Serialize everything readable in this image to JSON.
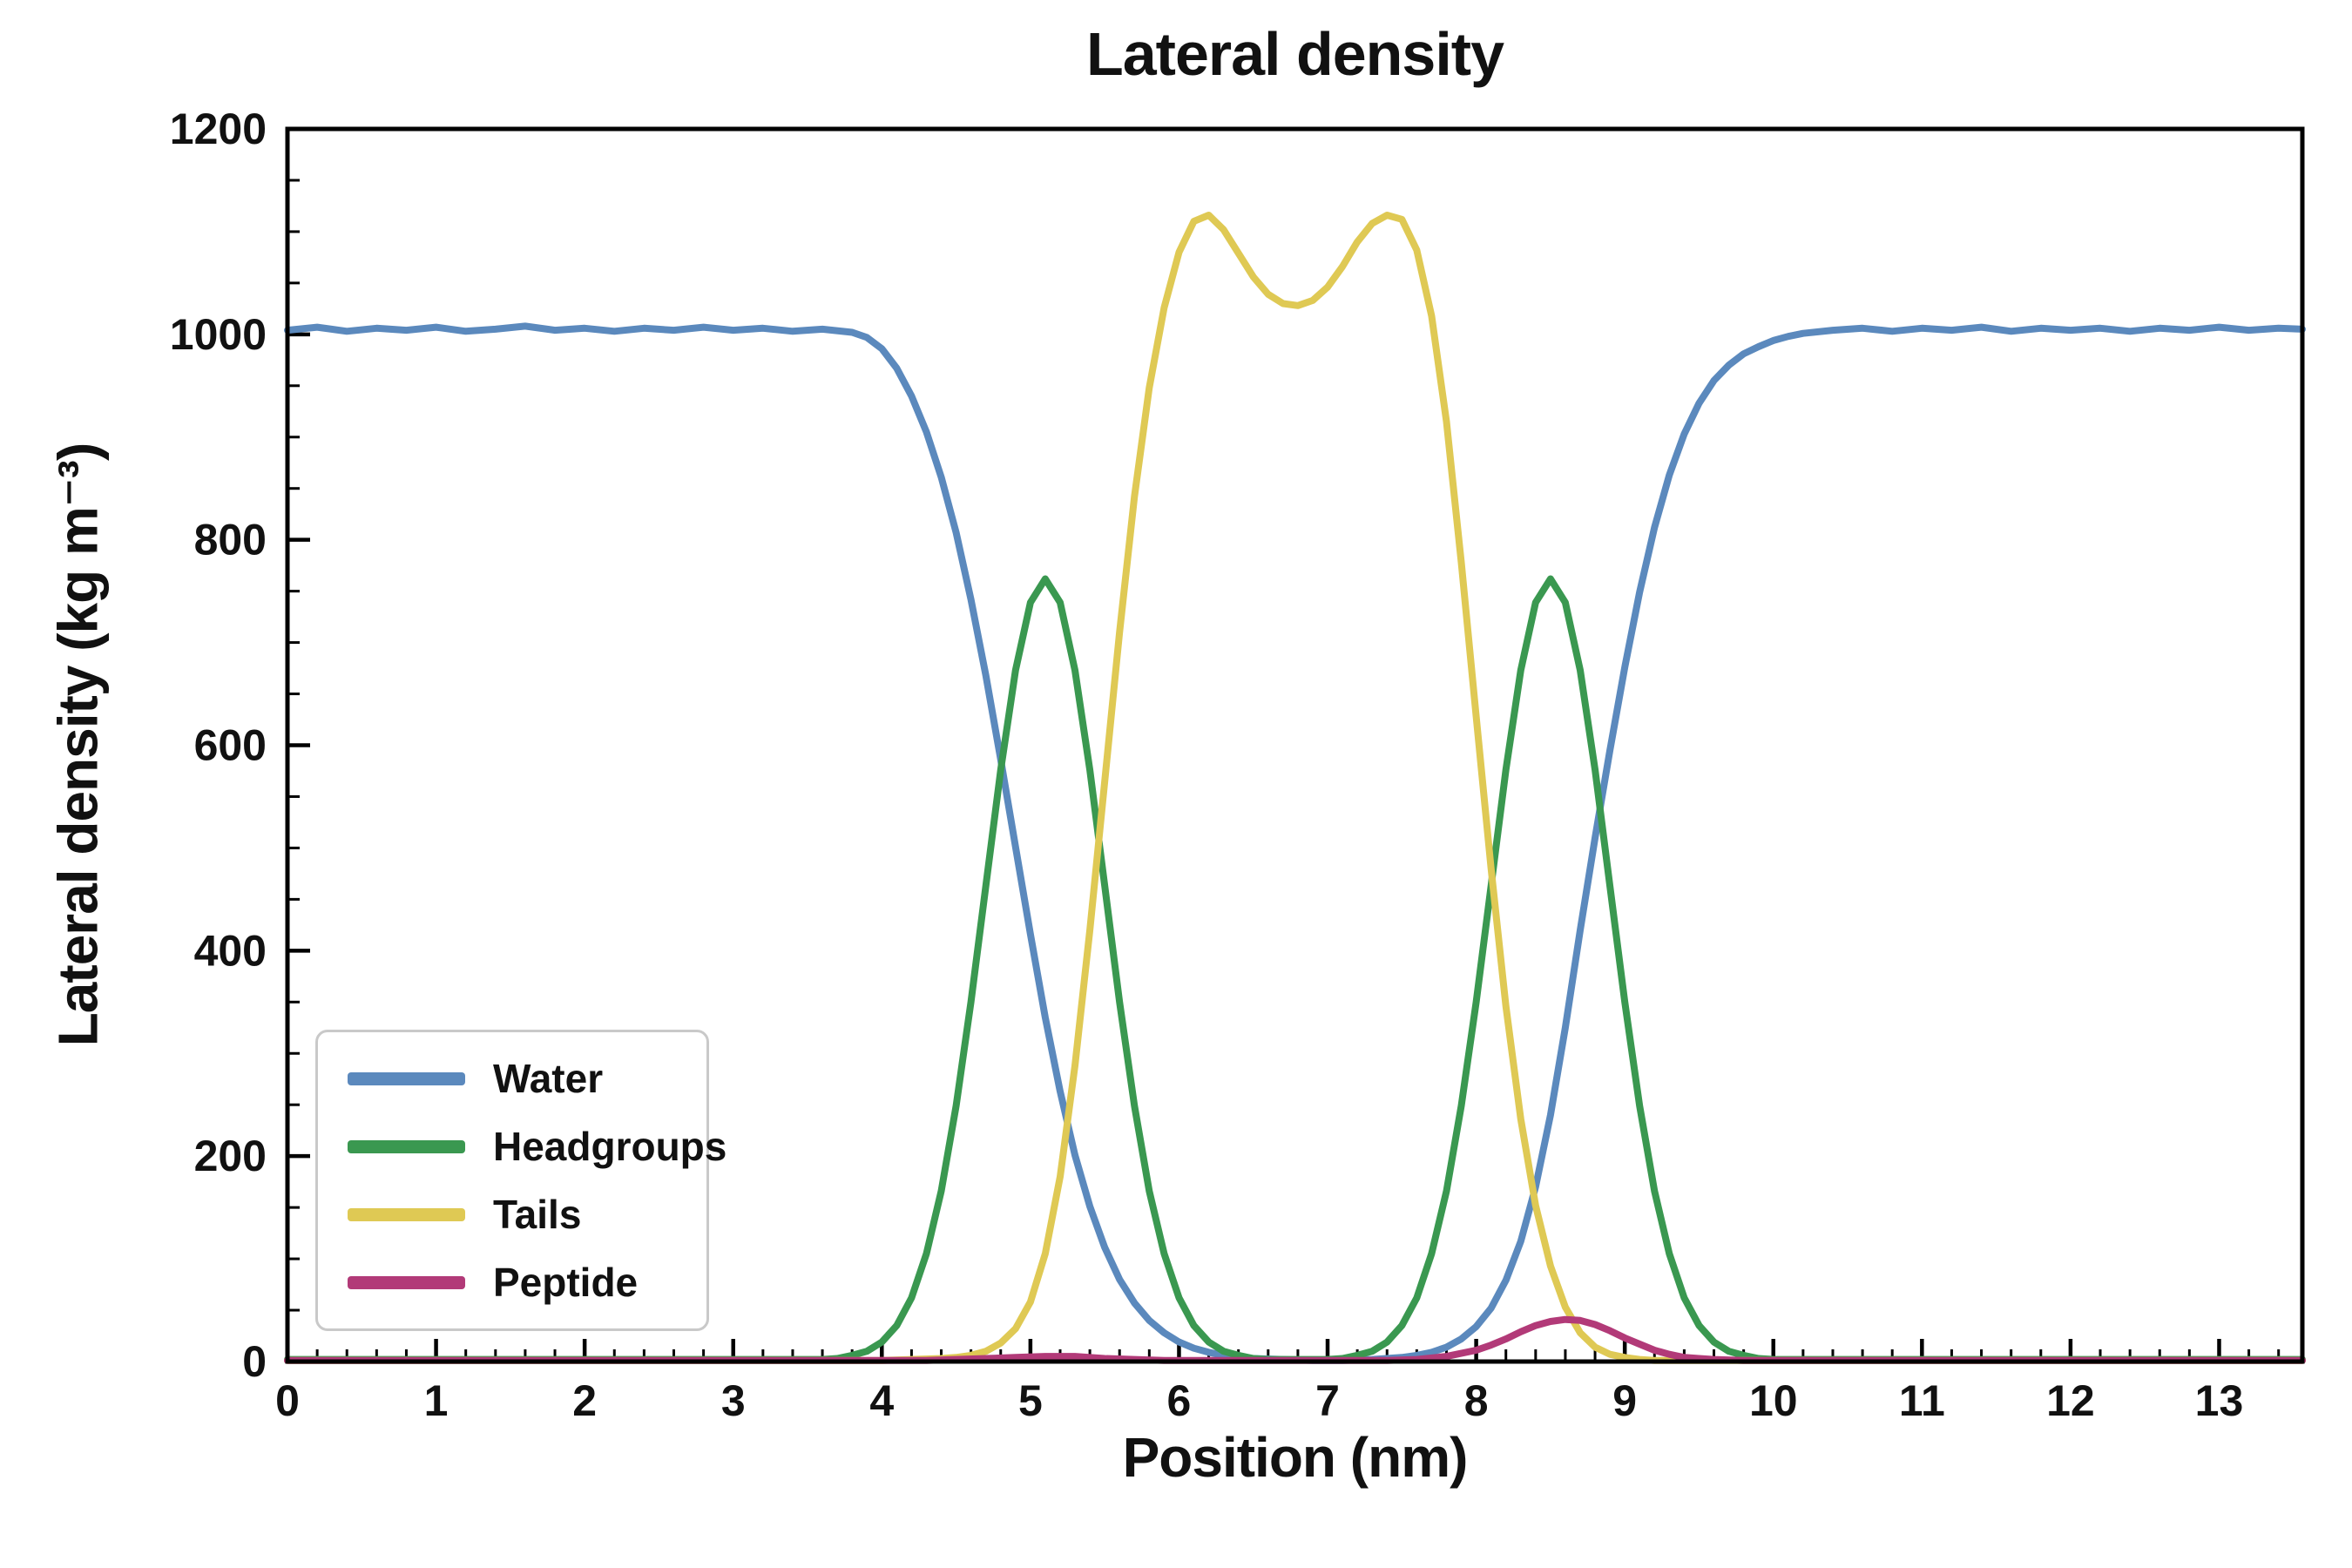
{
  "chart_data": {
    "type": "line",
    "title": "Lateral density",
    "xlabel": "Position (nm)",
    "ylabel": "Lateral density (kg m⁻³)",
    "xlim": [
      0,
      13.56
    ],
    "ylim": [
      0,
      1200
    ],
    "x_major_ticks": [
      0,
      1,
      2,
      3,
      4,
      5,
      6,
      7,
      8,
      9,
      10,
      11,
      12,
      13
    ],
    "x_minor_step": 0.2,
    "y_major_ticks": [
      0,
      200,
      400,
      600,
      800,
      1000,
      1200
    ],
    "y_minor_step": 50,
    "grid": false,
    "legend_position": "lower left",
    "frame_color": "#000000",
    "background_color": "#ffffff",
    "series": [
      {
        "name": "Water",
        "color": "#5b89bd",
        "points": [
          [
            0,
            1004
          ],
          [
            0.2,
            1007
          ],
          [
            0.4,
            1003
          ],
          [
            0.6,
            1006
          ],
          [
            0.8,
            1004
          ],
          [
            1.0,
            1007
          ],
          [
            1.2,
            1003
          ],
          [
            1.4,
            1005
          ],
          [
            1.6,
            1008
          ],
          [
            1.8,
            1004
          ],
          [
            2.0,
            1006
          ],
          [
            2.2,
            1003
          ],
          [
            2.4,
            1006
          ],
          [
            2.6,
            1004
          ],
          [
            2.8,
            1007
          ],
          [
            3.0,
            1004
          ],
          [
            3.2,
            1006
          ],
          [
            3.4,
            1003
          ],
          [
            3.6,
            1005
          ],
          [
            3.8,
            1002
          ],
          [
            3.9,
            997
          ],
          [
            4.0,
            986
          ],
          [
            4.1,
            967
          ],
          [
            4.2,
            940
          ],
          [
            4.3,
            905
          ],
          [
            4.4,
            861
          ],
          [
            4.5,
            807
          ],
          [
            4.6,
            742
          ],
          [
            4.7,
            668
          ],
          [
            4.8,
            586
          ],
          [
            4.9,
            501
          ],
          [
            5.0,
            416
          ],
          [
            5.1,
            335
          ],
          [
            5.2,
            263
          ],
          [
            5.3,
            201
          ],
          [
            5.4,
            151
          ],
          [
            5.5,
            111
          ],
          [
            5.6,
            80
          ],
          [
            5.7,
            57
          ],
          [
            5.8,
            40
          ],
          [
            5.9,
            28
          ],
          [
            6.0,
            19
          ],
          [
            6.1,
            13
          ],
          [
            6.2,
            9
          ],
          [
            6.3,
            6
          ],
          [
            6.4,
            4
          ],
          [
            6.5,
            3
          ],
          [
            6.7,
            2
          ],
          [
            6.9,
            1
          ],
          [
            7.1,
            1
          ],
          [
            7.3,
            2
          ],
          [
            7.5,
            4
          ],
          [
            7.6,
            6
          ],
          [
            7.7,
            9
          ],
          [
            7.8,
            14
          ],
          [
            7.9,
            22
          ],
          [
            8.0,
            34
          ],
          [
            8.1,
            52
          ],
          [
            8.2,
            79
          ],
          [
            8.3,
            117
          ],
          [
            8.4,
            170
          ],
          [
            8.5,
            240
          ],
          [
            8.6,
            325
          ],
          [
            8.7,
            420
          ],
          [
            8.8,
            510
          ],
          [
            8.9,
            595
          ],
          [
            9.0,
            676
          ],
          [
            9.1,
            749
          ],
          [
            9.2,
            812
          ],
          [
            9.3,
            863
          ],
          [
            9.4,
            903
          ],
          [
            9.5,
            933
          ],
          [
            9.6,
            955
          ],
          [
            9.7,
            970
          ],
          [
            9.8,
            981
          ],
          [
            9.9,
            988
          ],
          [
            10.0,
            994
          ],
          [
            10.1,
            998
          ],
          [
            10.2,
            1001
          ],
          [
            10.4,
            1004
          ],
          [
            10.6,
            1006
          ],
          [
            10.8,
            1003
          ],
          [
            11.0,
            1006
          ],
          [
            11.2,
            1004
          ],
          [
            11.4,
            1007
          ],
          [
            11.6,
            1003
          ],
          [
            11.8,
            1006
          ],
          [
            12.0,
            1004
          ],
          [
            12.2,
            1006
          ],
          [
            12.4,
            1003
          ],
          [
            12.6,
            1006
          ],
          [
            12.8,
            1004
          ],
          [
            13.0,
            1007
          ],
          [
            13.2,
            1004
          ],
          [
            13.4,
            1006
          ],
          [
            13.56,
            1005
          ]
        ]
      },
      {
        "name": "Headgroups",
        "color": "#3a9850",
        "points": [
          [
            0,
            2
          ],
          [
            0.4,
            2
          ],
          [
            0.8,
            2
          ],
          [
            1.2,
            2
          ],
          [
            1.6,
            2
          ],
          [
            2.0,
            2
          ],
          [
            2.4,
            2
          ],
          [
            2.8,
            2
          ],
          [
            3.2,
            2
          ],
          [
            3.5,
            2
          ],
          [
            3.6,
            2
          ],
          [
            3.7,
            3
          ],
          [
            3.8,
            6
          ],
          [
            3.9,
            10
          ],
          [
            4.0,
            19
          ],
          [
            4.1,
            35
          ],
          [
            4.2,
            62
          ],
          [
            4.3,
            105
          ],
          [
            4.4,
            166
          ],
          [
            4.5,
            249
          ],
          [
            4.6,
            350
          ],
          [
            4.7,
            463
          ],
          [
            4.8,
            576
          ],
          [
            4.9,
            673
          ],
          [
            5.0,
            739
          ],
          [
            5.1,
            762
          ],
          [
            5.2,
            739
          ],
          [
            5.3,
            673
          ],
          [
            5.4,
            576
          ],
          [
            5.5,
            463
          ],
          [
            5.6,
            350
          ],
          [
            5.7,
            249
          ],
          [
            5.8,
            166
          ],
          [
            5.9,
            105
          ],
          [
            6.0,
            62
          ],
          [
            6.1,
            35
          ],
          [
            6.2,
            19
          ],
          [
            6.3,
            10
          ],
          [
            6.4,
            6
          ],
          [
            6.5,
            3
          ],
          [
            6.6,
            2
          ],
          [
            6.8,
            2
          ],
          [
            7.0,
            2
          ],
          [
            7.1,
            3
          ],
          [
            7.2,
            6
          ],
          [
            7.3,
            10
          ],
          [
            7.4,
            19
          ],
          [
            7.5,
            35
          ],
          [
            7.6,
            62
          ],
          [
            7.7,
            105
          ],
          [
            7.8,
            166
          ],
          [
            7.9,
            249
          ],
          [
            8.0,
            350
          ],
          [
            8.1,
            463
          ],
          [
            8.2,
            576
          ],
          [
            8.3,
            673
          ],
          [
            8.4,
            739
          ],
          [
            8.5,
            762
          ],
          [
            8.6,
            739
          ],
          [
            8.7,
            673
          ],
          [
            8.8,
            576
          ],
          [
            8.9,
            463
          ],
          [
            9.0,
            350
          ],
          [
            9.1,
            249
          ],
          [
            9.2,
            166
          ],
          [
            9.3,
            105
          ],
          [
            9.4,
            62
          ],
          [
            9.5,
            35
          ],
          [
            9.6,
            19
          ],
          [
            9.7,
            10
          ],
          [
            9.8,
            6
          ],
          [
            9.9,
            3
          ],
          [
            10.0,
            2
          ],
          [
            10.4,
            2
          ],
          [
            10.8,
            2
          ],
          [
            11.2,
            2
          ],
          [
            11.6,
            2
          ],
          [
            12.0,
            2
          ],
          [
            12.4,
            2
          ],
          [
            12.8,
            2
          ],
          [
            13.2,
            2
          ],
          [
            13.56,
            2
          ]
        ]
      },
      {
        "name": "Tails",
        "color": "#dfc954",
        "points": [
          [
            0,
            1
          ],
          [
            1,
            1
          ],
          [
            2,
            1
          ],
          [
            3,
            1
          ],
          [
            3.5,
            1
          ],
          [
            4.0,
            1
          ],
          [
            4.2,
            2
          ],
          [
            4.4,
            3
          ],
          [
            4.5,
            4
          ],
          [
            4.6,
            6
          ],
          [
            4.7,
            10
          ],
          [
            4.8,
            18
          ],
          [
            4.9,
            32
          ],
          [
            5.0,
            58
          ],
          [
            5.1,
            105
          ],
          [
            5.2,
            180
          ],
          [
            5.3,
            288
          ],
          [
            5.4,
            420
          ],
          [
            5.5,
            565
          ],
          [
            5.6,
            710
          ],
          [
            5.7,
            842
          ],
          [
            5.8,
            948
          ],
          [
            5.9,
            1026
          ],
          [
            6.0,
            1080
          ],
          [
            6.1,
            1110
          ],
          [
            6.2,
            1116
          ],
          [
            6.3,
            1102
          ],
          [
            6.4,
            1079
          ],
          [
            6.5,
            1056
          ],
          [
            6.6,
            1039
          ],
          [
            6.7,
            1030
          ],
          [
            6.8,
            1028
          ],
          [
            6.9,
            1033
          ],
          [
            7.0,
            1046
          ],
          [
            7.1,
            1066
          ],
          [
            7.2,
            1090
          ],
          [
            7.3,
            1108
          ],
          [
            7.4,
            1116
          ],
          [
            7.5,
            1112
          ],
          [
            7.6,
            1082
          ],
          [
            7.7,
            1018
          ],
          [
            7.8,
            915
          ],
          [
            7.9,
            778
          ],
          [
            8.0,
            628
          ],
          [
            8.1,
            480
          ],
          [
            8.2,
            346
          ],
          [
            8.3,
            236
          ],
          [
            8.4,
            152
          ],
          [
            8.5,
            93
          ],
          [
            8.6,
            53
          ],
          [
            8.7,
            28
          ],
          [
            8.8,
            14
          ],
          [
            8.9,
            7
          ],
          [
            9.0,
            4
          ],
          [
            9.1,
            2
          ],
          [
            9.2,
            1
          ],
          [
            9.5,
            1
          ],
          [
            10,
            1
          ],
          [
            11,
            1
          ],
          [
            12,
            1
          ],
          [
            13,
            1
          ],
          [
            13.56,
            1
          ]
        ]
      },
      {
        "name": "Peptide",
        "color": "#b23a78",
        "points": [
          [
            0,
            1
          ],
          [
            1,
            1
          ],
          [
            2,
            1
          ],
          [
            3,
            1
          ],
          [
            4,
            1
          ],
          [
            4.3,
            1
          ],
          [
            4.5,
            2
          ],
          [
            4.7,
            3
          ],
          [
            4.9,
            4
          ],
          [
            5.1,
            5
          ],
          [
            5.3,
            5
          ],
          [
            5.5,
            3
          ],
          [
            5.7,
            2
          ],
          [
            5.9,
            1
          ],
          [
            6.5,
            1
          ],
          [
            7.0,
            1
          ],
          [
            7.4,
            1
          ],
          [
            7.6,
            2
          ],
          [
            7.8,
            5
          ],
          [
            8.0,
            11
          ],
          [
            8.1,
            16
          ],
          [
            8.2,
            22
          ],
          [
            8.3,
            29
          ],
          [
            8.4,
            35
          ],
          [
            8.5,
            39
          ],
          [
            8.6,
            41
          ],
          [
            8.7,
            40
          ],
          [
            8.8,
            36
          ],
          [
            8.9,
            30
          ],
          [
            9.0,
            23
          ],
          [
            9.1,
            17
          ],
          [
            9.2,
            11
          ],
          [
            9.3,
            7
          ],
          [
            9.4,
            4
          ],
          [
            9.5,
            3
          ],
          [
            9.6,
            2
          ],
          [
            9.8,
            1
          ],
          [
            10.0,
            1
          ],
          [
            11,
            1
          ],
          [
            12,
            1
          ],
          [
            13,
            1
          ],
          [
            13.56,
            1
          ]
        ]
      }
    ]
  }
}
